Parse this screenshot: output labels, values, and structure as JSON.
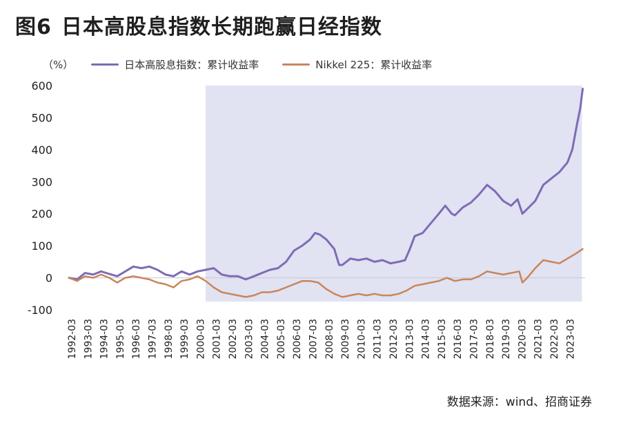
{
  "figure": {
    "number": "图6",
    "title": "日本高股息指数长期跑赢日经指数",
    "source": "数据来源：wind、招商证券"
  },
  "colors": {
    "series1": "#7e6bb5",
    "series2": "#c9855a",
    "shade": "#e1e2f2"
  },
  "chart_data": {
    "type": "line",
    "y_unit": "（%）",
    "ylim": [
      -100,
      600
    ],
    "y_ticks": [
      -100,
      0,
      100,
      200,
      300,
      400,
      500,
      600
    ],
    "x_ticks": [
      "1992-03",
      "1993-03",
      "1994-03",
      "1995-03",
      "1996-03",
      "1997-03",
      "1998-03",
      "1999-03",
      "2000-03",
      "2001-03",
      "2002-03",
      "2003-03",
      "2004-03",
      "2005-03",
      "2006-03",
      "2007-03",
      "2008-03",
      "2009-03",
      "2010-03",
      "2011-03",
      "2012-03",
      "2013-03",
      "2014-03",
      "2015-03",
      "2016-03",
      "2017-03",
      "2018-03",
      "2019-03",
      "2020-03",
      "2021-03",
      "2022-03",
      "2023-03"
    ],
    "x_range": [
      1992.0,
      2024.1
    ],
    "shaded_range": [
      2000.5,
      2023.9
    ],
    "grid": false,
    "legend_position": "top",
    "series": [
      {
        "name": "日本高股息指数：累计收益率",
        "x": [
          1992.0,
          1992.5,
          1993.0,
          1993.5,
          1994.0,
          1994.5,
          1995.0,
          1995.5,
          1996.0,
          1996.5,
          1997.0,
          1997.5,
          1998.0,
          1998.5,
          1999.0,
          1999.5,
          2000.0,
          2000.5,
          2001.0,
          2001.5,
          2002.0,
          2002.5,
          2003.0,
          2003.5,
          2004.0,
          2004.5,
          2005.0,
          2005.5,
          2006.0,
          2006.5,
          2007.0,
          2007.3,
          2007.6,
          2008.0,
          2008.5,
          2008.8,
          2009.0,
          2009.5,
          2010.0,
          2010.5,
          2011.0,
          2011.5,
          2012.0,
          2012.5,
          2012.9,
          2013.2,
          2013.5,
          2014.0,
          2014.5,
          2015.0,
          2015.4,
          2015.8,
          2016.0,
          2016.5,
          2017.0,
          2017.5,
          2018.0,
          2018.5,
          2019.0,
          2019.5,
          2019.9,
          2020.2,
          2020.5,
          2021.0,
          2021.5,
          2022.0,
          2022.5,
          2023.0,
          2023.3,
          2023.6,
          2023.8,
          2023.95
        ],
        "y": [
          0,
          -5,
          15,
          10,
          20,
          12,
          5,
          20,
          35,
          30,
          35,
          25,
          10,
          5,
          20,
          10,
          20,
          25,
          30,
          10,
          5,
          5,
          -5,
          5,
          15,
          25,
          30,
          50,
          85,
          100,
          120,
          140,
          135,
          120,
          90,
          40,
          40,
          60,
          55,
          60,
          50,
          55,
          45,
          50,
          55,
          90,
          130,
          140,
          170,
          200,
          225,
          200,
          195,
          220,
          235,
          260,
          290,
          270,
          240,
          225,
          245,
          200,
          215,
          240,
          290,
          310,
          330,
          360,
          400,
          480,
          530,
          590
        ]
      },
      {
        "name": "Nikkel 225：累计收益率",
        "x": [
          1992.0,
          1992.5,
          1993.0,
          1993.5,
          1994.0,
          1994.5,
          1995.0,
          1995.5,
          1996.0,
          1996.5,
          1997.0,
          1997.5,
          1998.0,
          1998.5,
          1999.0,
          1999.5,
          2000.0,
          2000.5,
          2001.0,
          2001.5,
          2002.0,
          2002.5,
          2003.0,
          2003.5,
          2004.0,
          2004.5,
          2005.0,
          2005.5,
          2006.0,
          2006.5,
          2007.0,
          2007.5,
          2008.0,
          2008.5,
          2009.0,
          2009.5,
          2010.0,
          2010.5,
          2011.0,
          2011.5,
          2012.0,
          2012.5,
          2013.0,
          2013.5,
          2014.0,
          2014.5,
          2015.0,
          2015.5,
          2016.0,
          2016.5,
          2017.0,
          2017.5,
          2018.0,
          2018.5,
          2019.0,
          2019.5,
          2020.0,
          2020.2,
          2020.5,
          2021.0,
          2021.5,
          2022.0,
          2022.5,
          2023.0,
          2023.5,
          2023.95
        ],
        "y": [
          0,
          -10,
          5,
          0,
          10,
          0,
          -15,
          0,
          5,
          0,
          -5,
          -15,
          -20,
          -30,
          -10,
          -5,
          5,
          -10,
          -30,
          -45,
          -50,
          -55,
          -60,
          -55,
          -45,
          -45,
          -40,
          -30,
          -20,
          -10,
          -10,
          -15,
          -35,
          -50,
          -60,
          -55,
          -50,
          -55,
          -50,
          -55,
          -55,
          -50,
          -40,
          -25,
          -20,
          -15,
          -10,
          0,
          -10,
          -5,
          -5,
          5,
          20,
          15,
          10,
          15,
          20,
          -15,
          0,
          30,
          55,
          50,
          45,
          60,
          75,
          90
        ]
      }
    ]
  }
}
